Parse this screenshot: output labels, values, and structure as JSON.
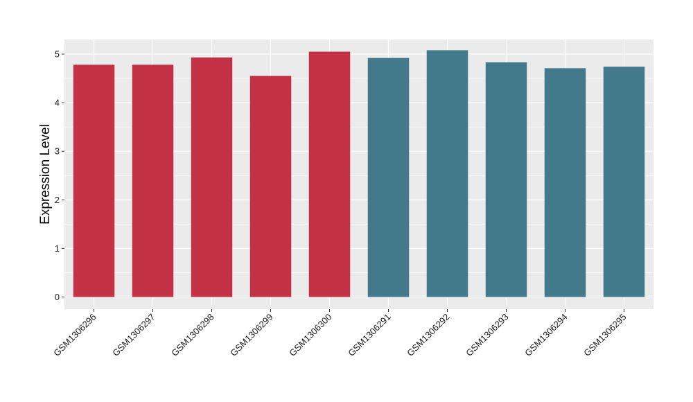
{
  "chart_data": {
    "type": "bar",
    "title": "",
    "xlabel": "",
    "ylabel": "Expression Level",
    "categories": [
      "GSM1306296",
      "GSM1306297",
      "GSM1306298",
      "GSM1306299",
      "GSM1306300",
      "GSM1306291",
      "GSM1306292",
      "GSM1306293",
      "GSM1306294",
      "GSM1306295"
    ],
    "values": [
      4.78,
      4.78,
      4.93,
      4.55,
      5.05,
      4.92,
      5.08,
      4.83,
      4.71,
      4.74
    ],
    "group_colors": [
      "#c33146",
      "#c33146",
      "#c33146",
      "#c33146",
      "#c33146",
      "#427a8b",
      "#427a8b",
      "#427a8b",
      "#427a8b",
      "#427a8b"
    ],
    "ylim": [
      -0.25,
      5.3
    ],
    "yticks": [
      0,
      1,
      2,
      3,
      4,
      5
    ],
    "grid": true,
    "panel_background": "#ebebeb",
    "grid_color": "#ffffff",
    "legend": "none"
  }
}
